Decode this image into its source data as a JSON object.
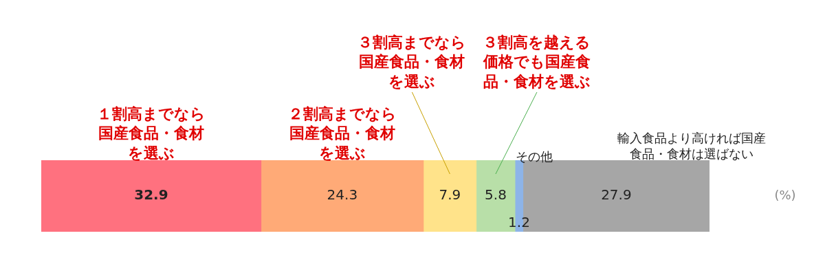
{
  "chart_data": {
    "type": "bar",
    "orientation": "horizontal",
    "stacked": true,
    "categories": [
      null
    ],
    "series": [
      {
        "name": "１割高までなら国産食品・食材を選ぶ",
        "color": "#ff717f",
        "values": [
          32.9
        ]
      },
      {
        "name": "２割高までなら国産食品・食材を選ぶ",
        "color": "#ffaa77",
        "values": [
          24.3
        ]
      },
      {
        "name": "３割高までなら国産食品・食材を選ぶ",
        "color": "#ffe38a",
        "values": [
          7.9
        ]
      },
      {
        "name": "３割高を越える価格でも国産食品・食材を選ぶ",
        "color": "#b8dfa8",
        "values": [
          5.8
        ]
      },
      {
        "name": "その他",
        "color": "#8db4e8",
        "values": [
          1.2
        ]
      },
      {
        "name": "輸入食品より高ければ国産食品・食材は選ばない",
        "color": "#a6a6a6",
        "values": [
          27.9
        ]
      }
    ],
    "xlim": [
      0,
      100
    ],
    "tick_labels": false,
    "legend": false,
    "data_labels": true,
    "annotations": [
      "(%)"
    ]
  }
}
